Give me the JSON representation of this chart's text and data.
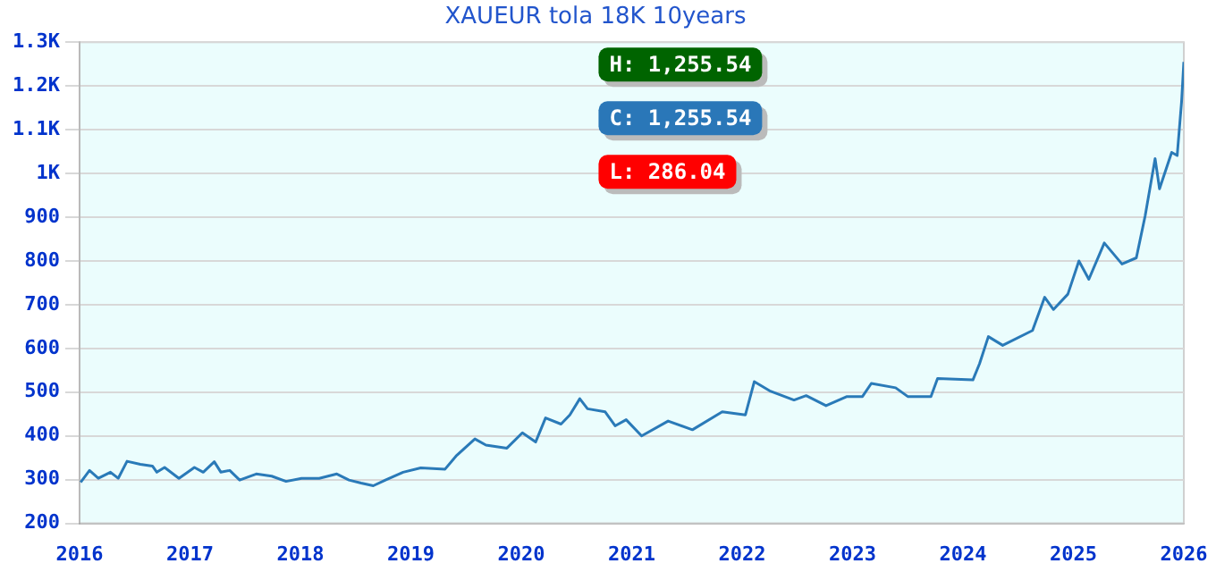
{
  "chart_data": {
    "type": "line",
    "title": "XAUEUR tola 18K 10years",
    "annotations": [
      "H: 1,255.54",
      "C: 1,255.54",
      "L: 286.04"
    ],
    "series": [
      {
        "color": "#2a7ab8",
        "x": [
          2016.01,
          2016.09,
          2016.17,
          2016.28,
          2016.35,
          2016.43,
          2016.55,
          2016.66,
          2016.7,
          2016.77,
          2016.9,
          2017.04,
          2017.12,
          2017.22,
          2017.28,
          2017.36,
          2017.45,
          2017.6,
          2017.74,
          2017.87,
          2018.01,
          2018.17,
          2018.33,
          2018.44,
          2018.55,
          2018.66,
          2018.77,
          2018.93,
          2019.09,
          2019.31,
          2019.41,
          2019.58,
          2019.68,
          2019.87,
          2020.01,
          2020.13,
          2020.22,
          2020.36,
          2020.44,
          2020.53,
          2020.6,
          2020.76,
          2020.85,
          2020.95,
          2021.09,
          2021.33,
          2021.55,
          2021.82,
          2022.03,
          2022.11,
          2022.25,
          2022.47,
          2022.58,
          2022.76,
          2022.95,
          2023.09,
          2023.17,
          2023.39,
          2023.5,
          2023.71,
          2023.77,
          2024.09,
          2024.15,
          2024.23,
          2024.36,
          2024.63,
          2024.74,
          2024.82,
          2024.95,
          2025.05,
          2025.14,
          2025.28,
          2025.44,
          2025.57,
          2025.65,
          2025.74,
          2025.78,
          2025.89,
          2025.94,
          2025.98,
          2026
        ],
        "values": [
          294,
          321,
          303,
          317,
          303,
          342,
          335,
          331,
          317,
          328,
          303,
          328,
          317,
          341,
          317,
          321,
          299,
          313,
          308,
          296,
          303,
          303,
          313,
          299,
          292,
          286,
          299,
          317,
          327,
          324,
          354,
          393,
          379,
          372,
          407,
          386,
          441,
          427,
          448,
          485,
          462,
          455,
          423,
          437,
          400,
          434,
          414,
          455,
          448,
          524,
          503,
          482,
          492,
          469,
          490,
          490,
          520,
          510,
          490,
          490,
          531,
          528,
          565,
          627,
          607,
          641,
          717,
          689,
          724,
          800,
          758,
          841,
          793,
          807,
          903,
          1034,
          965,
          1048,
          1041,
          1165,
          1255
        ]
      }
    ],
    "xlim": [
      2016,
      2026
    ],
    "xticks": [
      2016,
      2017,
      2018,
      2019,
      2020,
      2021,
      2022,
      2023,
      2024,
      2025,
      2026
    ],
    "ylim": [
      200,
      1300
    ],
    "yticks": [
      200,
      300,
      400,
      500,
      600,
      700,
      800,
      900,
      {
        "value": 1000,
        "label": "1K"
      },
      {
        "value": 1100,
        "label": "1.1K"
      },
      {
        "value": 1200,
        "label": "1.2K"
      },
      {
        "value": 1300,
        "label": "1.3K"
      }
    ],
    "grid": "y",
    "legend": false,
    "marker": "none",
    "line_style": "solid"
  }
}
